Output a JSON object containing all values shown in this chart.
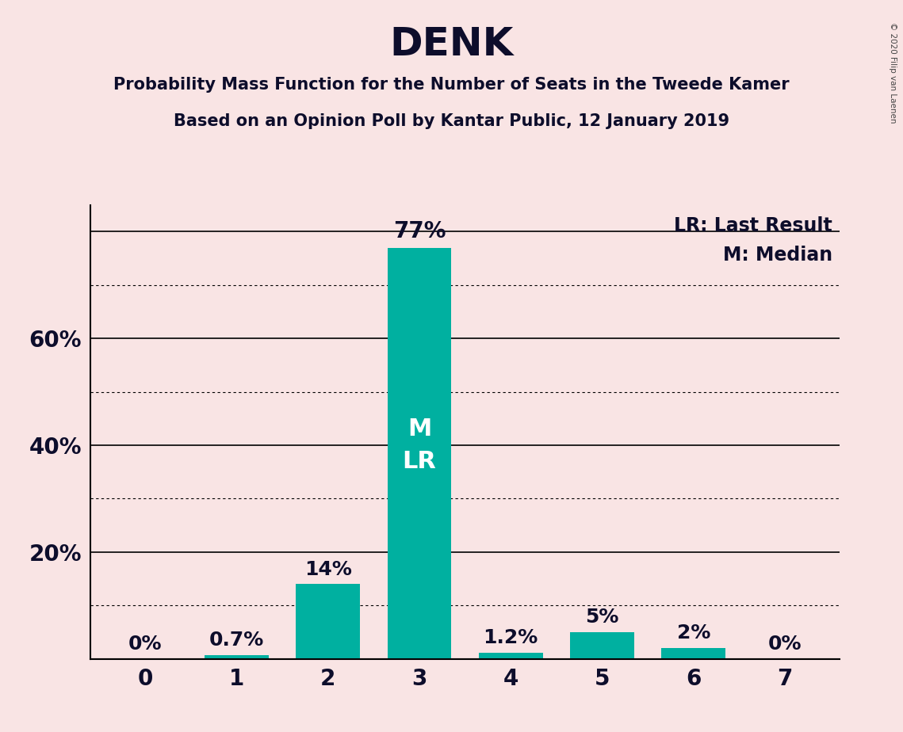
{
  "title": "DENK",
  "subtitle1": "Probability Mass Function for the Number of Seats in the Tweede Kamer",
  "subtitle2": "Based on an Opinion Poll by Kantar Public, 12 January 2019",
  "categories": [
    0,
    1,
    2,
    3,
    4,
    5,
    6,
    7
  ],
  "values": [
    0.0,
    0.7,
    14.0,
    77.0,
    1.2,
    5.0,
    2.0,
    0.0
  ],
  "bar_labels": [
    "0%",
    "0.7%",
    "14%",
    "77%",
    "1.2%",
    "5%",
    "2%",
    "0%"
  ],
  "bar_color": "#00b0a0",
  "background_color": "#f9e4e4",
  "text_color": "#0d0d2b",
  "bar_label_color_inside": "#ffffff",
  "bar_label_color_outside": "#0d0d2b",
  "legend_lr": "LR: Last Result",
  "legend_m": "M: Median",
  "inside_label": "M\nLR",
  "copyright": "© 2020 Filip van Laenen",
  "ylim": [
    0,
    85
  ],
  "solid_yticks": [
    20,
    40,
    60,
    80
  ],
  "dotted_yticks": [
    10,
    30,
    50,
    70
  ],
  "label_yticks": [
    20,
    40,
    60
  ],
  "figsize": [
    11.39,
    9.24
  ],
  "dpi": 100
}
